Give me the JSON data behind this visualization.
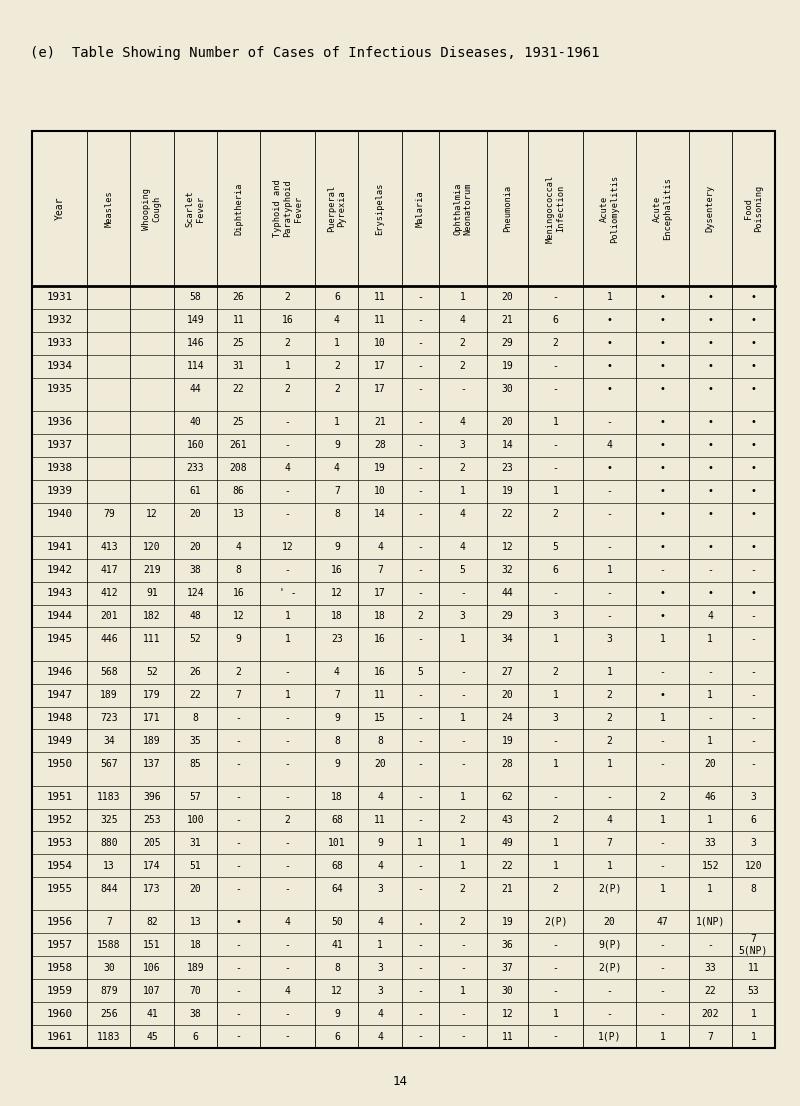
{
  "title": "(e)  Table Showing Number of Cases of Infectious Diseases, 1931-1961",
  "page_num": "14",
  "background_color": "#f0ead8",
  "columns": [
    "Year",
    "Measles",
    "Whooping\nCough",
    "Scarlet\nFever",
    "Diphtheria",
    "Typhoid and\nParatyphoid\nFever",
    "Puerperal\nPyrexia",
    "Erysipelas",
    "Malaria",
    "Ophthalmia\nNeonatorum",
    "Pneumonia",
    "Meningococcal\nInfection",
    "Acute\nPoliomyelitis",
    "Acute\nEncephalitis",
    "Dysentery",
    "Food\nPoisoning"
  ],
  "rows": [
    [
      "1931",
      "",
      "",
      "58",
      "26",
      "2",
      "6",
      "11",
      "-",
      "1",
      "20",
      "-",
      "1",
      "•",
      "•",
      "•"
    ],
    [
      "1932",
      "",
      "",
      "149",
      "11",
      "16",
      "4",
      "11",
      "-",
      "4",
      "21",
      "6",
      "•",
      "•",
      "•",
      "•"
    ],
    [
      "1933",
      "",
      "",
      "146",
      "25",
      "2",
      "1",
      "10",
      "-",
      "2",
      "29",
      "2",
      "•",
      "•",
      "•",
      "•"
    ],
    [
      "1934",
      "",
      "",
      "114",
      "31",
      "1",
      "2",
      "17",
      "-",
      "2",
      "19",
      "-",
      "•",
      "•",
      "•",
      "•"
    ],
    [
      "1935",
      "",
      "",
      "44",
      "22",
      "2",
      "2",
      "17",
      "-",
      "-",
      "30",
      "-",
      "•",
      "•",
      "•",
      "•"
    ],
    [
      "1936",
      "",
      "",
      "40",
      "25",
      "-",
      "1",
      "21",
      "-",
      "4",
      "20",
      "1",
      "-",
      "•",
      "•",
      "•"
    ],
    [
      "1937",
      "",
      "",
      "160",
      "261",
      "-",
      "9",
      "28",
      "-",
      "3",
      "14",
      "-",
      "4",
      "•",
      "•",
      "•"
    ],
    [
      "1938",
      "",
      "",
      "233",
      "208",
      "4",
      "4",
      "19",
      "-",
      "2",
      "23",
      "-",
      "•",
      "•",
      "•",
      "•"
    ],
    [
      "1939",
      "",
      "",
      "61",
      "86",
      "-",
      "7",
      "10",
      "-",
      "1",
      "19",
      "1",
      "-",
      "•",
      "•",
      "•"
    ],
    [
      "1940",
      "79",
      "12",
      "20",
      "13",
      "-",
      "8",
      "14",
      "-",
      "4",
      "22",
      "2",
      "-",
      "•",
      "•",
      "•"
    ],
    [
      "1941",
      "413",
      "120",
      "20",
      "4",
      "12",
      "9",
      "4",
      "-",
      "4",
      "12",
      "5",
      "-",
      "•",
      "•",
      "•"
    ],
    [
      "1942",
      "417",
      "219",
      "38",
      "8",
      "-",
      "16",
      "7",
      "-",
      "5",
      "32",
      "6",
      "1",
      "-",
      "-",
      "-"
    ],
    [
      "1943",
      "412",
      "91",
      "124",
      "16",
      "' -",
      "12",
      "17",
      "-",
      "-",
      "44",
      "-",
      "-",
      "•",
      "•",
      "•"
    ],
    [
      "1944",
      "201",
      "182",
      "48",
      "12",
      "1",
      "18",
      "18",
      "2",
      "3",
      "29",
      "3",
      "-",
      "•",
      "4",
      "-"
    ],
    [
      "1945",
      "446",
      "111",
      "52",
      "9",
      "1",
      "23",
      "16",
      "-",
      "1",
      "34",
      "1",
      "3",
      "1",
      "1",
      "-"
    ],
    [
      "1946",
      "568",
      "52",
      "26",
      "2",
      "-",
      "4",
      "16",
      "5",
      "-",
      "27",
      "2",
      "1",
      "-",
      "-",
      "-"
    ],
    [
      "1947",
      "189",
      "179",
      "22",
      "7",
      "1",
      "7",
      "11",
      "-",
      "-",
      "20",
      "1",
      "2",
      "•",
      "1",
      "-"
    ],
    [
      "1948",
      "723",
      "171",
      "8",
      "-",
      "-",
      "9",
      "15",
      "-",
      "1",
      "24",
      "3",
      "2",
      "1",
      "-",
      "-"
    ],
    [
      "1949",
      "34",
      "189",
      "35",
      "-",
      "-",
      "8",
      "8",
      "-",
      "-",
      "19",
      "-",
      "2",
      "-",
      "1",
      "-"
    ],
    [
      "1950",
      "567",
      "137",
      "85",
      "-",
      "-",
      "9",
      "20",
      "-",
      "-",
      "28",
      "1",
      "1",
      "-",
      "20",
      "-"
    ],
    [
      "1951",
      "1183",
      "396",
      "57",
      "-",
      "-",
      "18",
      "4",
      "-",
      "1",
      "62",
      "-",
      "-",
      "2",
      "46",
      "3"
    ],
    [
      "1952",
      "325",
      "253",
      "100",
      "-",
      "2",
      "68",
      "11",
      "-",
      "2",
      "43",
      "2",
      "4",
      "1",
      "1",
      "6"
    ],
    [
      "1953",
      "880",
      "205",
      "31",
      "-",
      "-",
      "101",
      "9",
      "1",
      "1",
      "49",
      "1",
      "7",
      "-",
      "33",
      "3"
    ],
    [
      "1954",
      "13",
      "174",
      "51",
      "-",
      "-",
      "68",
      "4",
      "-",
      "1",
      "22",
      "1",
      "1",
      "-",
      "152",
      "120"
    ],
    [
      "1955",
      "844",
      "173",
      "20",
      "-",
      "-",
      "64",
      "3",
      "-",
      "2",
      "21",
      "2",
      "2(P)",
      "1",
      "1",
      "8"
    ],
    [
      "1956",
      "7",
      "82",
      "13",
      "•",
      "4",
      "50",
      "4",
      ".",
      "2",
      "19",
      "2(P)",
      "20",
      "47",
      "1(NP)",
      ""
    ],
    [
      "1957",
      "1588",
      "151",
      "18",
      "-",
      "-",
      "41",
      "1",
      "-",
      "-",
      "36",
      "-",
      "9(P)",
      "-",
      "-",
      "7\n5(NP)"
    ],
    [
      "1958",
      "30",
      "106",
      "189",
      "-",
      "-",
      "8",
      "3",
      "-",
      "-",
      "37",
      "-",
      "2(P)",
      "-",
      "33",
      "11"
    ],
    [
      "1959",
      "879",
      "107",
      "70",
      "-",
      "4",
      "12",
      "3",
      "-",
      "1",
      "30",
      "-",
      "-",
      "-",
      "22",
      "53"
    ],
    [
      "1960",
      "256",
      "41",
      "38",
      "-",
      "-",
      "9",
      "4",
      "-",
      "-",
      "12",
      "1",
      "-",
      "-",
      "202",
      "1"
    ],
    [
      "1961",
      "1183",
      "45",
      "6",
      "-",
      "-",
      "6",
      "4",
      "-",
      "-",
      "11",
      "-",
      "1(P)",
      "1",
      "7",
      "1"
    ]
  ],
  "group_breaks": [
    4,
    9,
    14,
    19,
    24
  ],
  "col_weights": [
    1.05,
    0.82,
    0.82,
    0.82,
    0.82,
    1.05,
    0.82,
    0.82,
    0.7,
    0.92,
    0.78,
    1.05,
    1.0,
    1.0,
    0.82,
    0.82
  ]
}
